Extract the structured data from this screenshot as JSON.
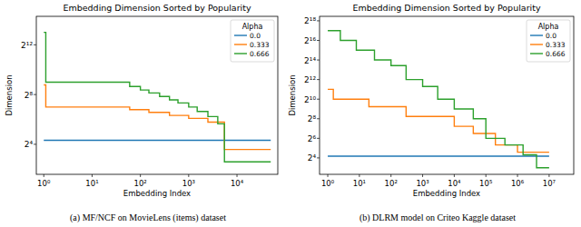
{
  "chart_data": [
    {
      "type": "line",
      "title": "Embedding Dimension Sorted by Popularity",
      "xlabel": "Embedding Index",
      "ylabel": "Dimension",
      "caption": "(a) MF/NCF on MovieLens (items) dataset",
      "legend_title": "Alpha",
      "legend": "upper right",
      "log": true,
      "grid": false,
      "line_style": "step",
      "xlim": [
        0.7,
        70000
      ],
      "ylim": [
        3,
        20000
      ],
      "xticks": [
        {
          "value": 1,
          "label": "10⁰"
        },
        {
          "value": 10,
          "label": "10¹"
        },
        {
          "value": 100,
          "label": "10²"
        },
        {
          "value": 1000,
          "label": "10³"
        },
        {
          "value": 10000,
          "label": "10⁴"
        }
      ],
      "yticks": [
        {
          "value": 16,
          "label": "2⁴"
        },
        {
          "value": 256,
          "label": "2⁸"
        },
        {
          "value": 4096,
          "label": "2¹²"
        }
      ],
      "series": [
        {
          "name": "0.0",
          "color": "#1f77b4",
          "x": [
            1,
            50000
          ],
          "values": [
            20,
            20
          ]
        },
        {
          "name": "0.333",
          "color": "#ff7f0e",
          "x": [
            1,
            1.1,
            60,
            150,
            400,
            1000,
            2500,
            5500,
            50000
          ],
          "values": [
            440,
            128,
            110,
            95,
            80,
            68,
            55,
            12,
            12
          ]
        },
        {
          "name": "0.666",
          "color": "#2ca02c",
          "x": [
            1,
            1.1,
            60,
            100,
            150,
            250,
            400,
            600,
            1000,
            1500,
            2500,
            4000,
            5500,
            50000
          ],
          "values": [
            8192,
            512,
            400,
            330,
            280,
            230,
            190,
            160,
            128,
            100,
            75,
            50,
            6,
            6
          ]
        }
      ]
    },
    {
      "type": "line",
      "title": "Embedding Dimension Sorted by Popularity",
      "xlabel": "Embedding Index",
      "ylabel": "Dimension",
      "caption": "(b) DLRM model on Criteo Kaggle dataset",
      "legend_title": "Alpha",
      "legend": "upper right",
      "log": true,
      "grid": false,
      "line_style": "step",
      "xlim": [
        0.55,
        60000000
      ],
      "ylim": [
        5,
        360000
      ],
      "xticks": [
        {
          "value": 1,
          "label": "10⁰"
        },
        {
          "value": 10,
          "label": "10¹"
        },
        {
          "value": 100,
          "label": "10²"
        },
        {
          "value": 1000,
          "label": "10³"
        },
        {
          "value": 10000,
          "label": "10⁴"
        },
        {
          "value": 100000,
          "label": "10⁵"
        },
        {
          "value": 1000000,
          "label": "10⁶"
        },
        {
          "value": 10000000,
          "label": "10⁷"
        }
      ],
      "yticks": [
        {
          "value": 16,
          "label": "2⁴"
        },
        {
          "value": 64,
          "label": "2⁶"
        },
        {
          "value": 256,
          "label": "2⁸"
        },
        {
          "value": 1024,
          "label": "2¹⁰"
        },
        {
          "value": 4096,
          "label": "2¹²"
        },
        {
          "value": 16384,
          "label": "2¹⁴"
        },
        {
          "value": 65536,
          "label": "2¹⁶"
        },
        {
          "value": 262144,
          "label": "2¹⁸"
        }
      ],
      "series": [
        {
          "name": "0.0",
          "color": "#1f77b4",
          "x": [
            1,
            10000000
          ],
          "values": [
            18,
            18
          ]
        },
        {
          "name": "0.333",
          "color": "#ff7f0e",
          "x": [
            1,
            1.5,
            20,
            300,
            10000,
            40000,
            200000,
            1000000,
            10000000
          ],
          "values": [
            2048,
            1024,
            600,
            300,
            150,
            90,
            40,
            24,
            24
          ]
        },
        {
          "name": "0.666",
          "color": "#2ca02c",
          "x": [
            1,
            2.5,
            8,
            30,
            100,
            300,
            1000,
            3000,
            10000,
            40000,
            100000,
            400000,
            1500000,
            4000000,
            10000000
          ],
          "values": [
            131072,
            65536,
            32768,
            16384,
            11000,
            4096,
            2500,
            1024,
            512,
            256,
            64,
            40,
            20,
            8,
            8
          ]
        }
      ]
    }
  ]
}
